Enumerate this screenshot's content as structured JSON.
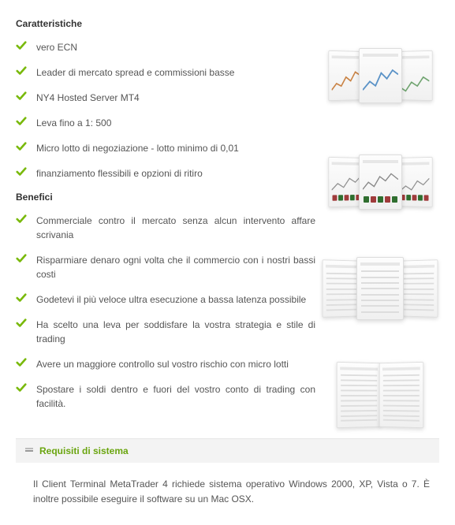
{
  "colors": {
    "check": "#79b90b",
    "heading": "#333333",
    "text": "#555555",
    "bar_bg": "#f3f3f3",
    "bar_title": "#6aa50f"
  },
  "headings": {
    "features": "Caratteristiche",
    "benefits": "Benefici"
  },
  "features": [
    "vero ECN",
    "Leader di mercato spread e commissioni basse",
    "NY4 Hosted Server MT4",
    "Leva fino a 1: 500",
    "Micro lotto di negoziazione - lotto minimo di 0,01",
    "finanziamento flessibili e opzioni di ritiro"
  ],
  "benefits": [
    "Commerciale contro il mercato senza alcun intervento affare scrivania",
    "Risparmiare denaro ogni volta che il commercio con i nostri bassi costi",
    "Godetevi il più veloce ultra esecuzione a bassa latenza possibile",
    "Ha scelto una leva per soddisfare la vostra strategia e stile di trading",
    "Avere un maggiore controllo sul vostro rischio con micro lotti",
    "Spostare i soldi dentro e fuori del vostro conto di trading con facilità."
  ],
  "accordion": {
    "title": "Requisiti di sistema",
    "body": "Il Client Terminal MetaTrader 4 richiede sistema operativo Windows 2000, XP, Vista o 7. È inoltre possibile eseguire il software su un Mac OSX."
  },
  "side_images": {
    "group1_colors": [
      "#c77d3c",
      "#5b93c7",
      "#6aa06a"
    ],
    "group2_osc": [
      "#9f3b3b",
      "#2f6e2f"
    ],
    "group3_type": "list",
    "group4_type": "docs"
  }
}
